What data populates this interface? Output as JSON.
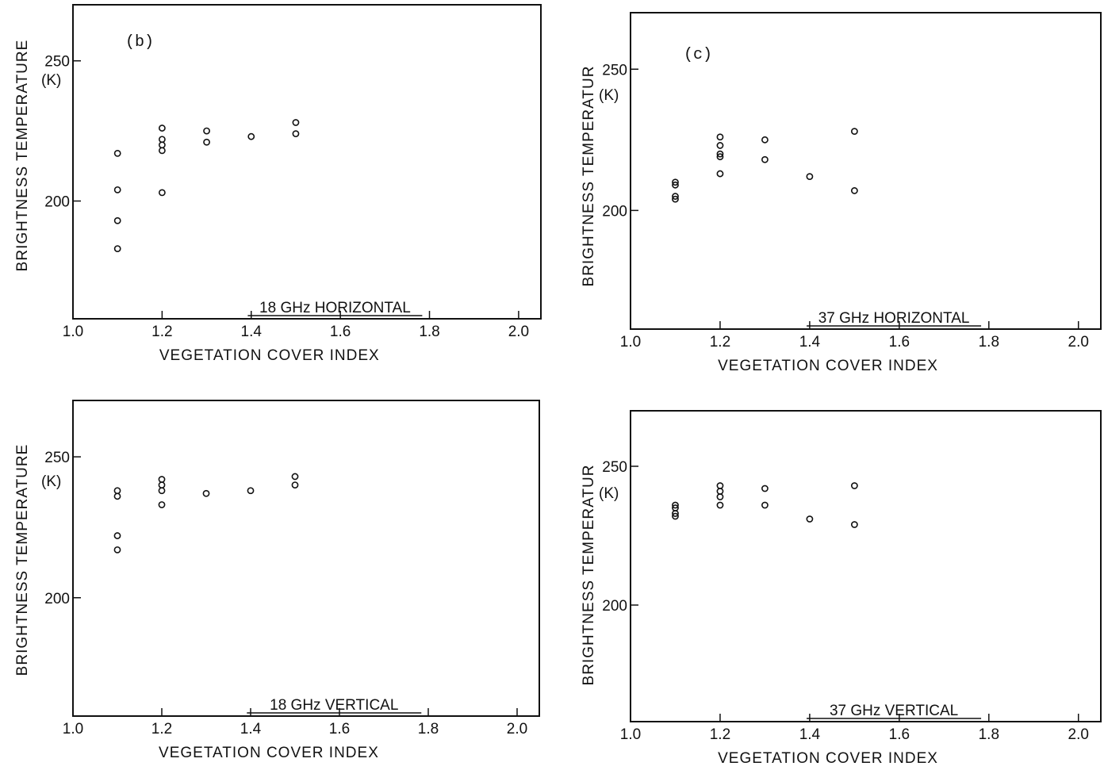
{
  "chart_data": [
    {
      "type": "scatter",
      "panel": "(b)",
      "annotation": "18 GHz HORIZONTAL",
      "xlabel": "VEGETATION COVER INDEX",
      "ylabel": "BRIGHTNESS TEMPERATURE",
      "yunit": "(K)",
      "xlim": [
        1.0,
        2.05
      ],
      "ylim": [
        158,
        270
      ],
      "xticks": [
        "1.0",
        "1.2",
        "1.4",
        "1.6",
        "1.8",
        "2.0"
      ],
      "xtick_values": [
        1.0,
        1.2,
        1.4,
        1.6,
        1.8,
        2.0
      ],
      "yticks": [
        "200",
        "250"
      ],
      "ytick_values": [
        200,
        250
      ],
      "points": [
        {
          "x": 1.1,
          "y": 217
        },
        {
          "x": 1.1,
          "y": 204
        },
        {
          "x": 1.1,
          "y": 193
        },
        {
          "x": 1.1,
          "y": 183
        },
        {
          "x": 1.2,
          "y": 226
        },
        {
          "x": 1.2,
          "y": 222
        },
        {
          "x": 1.2,
          "y": 220
        },
        {
          "x": 1.2,
          "y": 218
        },
        {
          "x": 1.2,
          "y": 203
        },
        {
          "x": 1.3,
          "y": 225
        },
        {
          "x": 1.3,
          "y": 221
        },
        {
          "x": 1.4,
          "y": 223
        },
        {
          "x": 1.5,
          "y": 228
        },
        {
          "x": 1.5,
          "y": 224
        }
      ]
    },
    {
      "type": "scatter",
      "panel": "(c)",
      "annotation": "37 GHz HORIZONTAL",
      "xlabel": "VEGETATION COVER INDEX",
      "ylabel": "BRIGHTNESS TEMPERATUR",
      "yunit": "(K)",
      "xlim": [
        1.0,
        2.05
      ],
      "ylim": [
        158,
        270
      ],
      "xticks": [
        "1.0",
        "1.2",
        "1.4",
        "1.6",
        "1.8",
        "2.0"
      ],
      "xtick_values": [
        1.0,
        1.2,
        1.4,
        1.6,
        1.8,
        2.0
      ],
      "yticks": [
        "200",
        "250"
      ],
      "ytick_values": [
        200,
        250
      ],
      "points": [
        {
          "x": 1.1,
          "y": 210
        },
        {
          "x": 1.1,
          "y": 209
        },
        {
          "x": 1.1,
          "y": 205
        },
        {
          "x": 1.1,
          "y": 204
        },
        {
          "x": 1.2,
          "y": 226
        },
        {
          "x": 1.2,
          "y": 223
        },
        {
          "x": 1.2,
          "y": 220
        },
        {
          "x": 1.2,
          "y": 219
        },
        {
          "x": 1.2,
          "y": 213
        },
        {
          "x": 1.3,
          "y": 225
        },
        {
          "x": 1.3,
          "y": 218
        },
        {
          "x": 1.4,
          "y": 212
        },
        {
          "x": 1.5,
          "y": 228
        },
        {
          "x": 1.5,
          "y": 207
        }
      ]
    },
    {
      "type": "scatter",
      "annotation": "18 GHz VERTICAL",
      "xlabel": "VEGETATION COVER INDEX",
      "ylabel": "BRIGHTNESS TEMPERATURE",
      "yunit": "(K)",
      "xlim": [
        1.0,
        2.05
      ],
      "ylim": [
        158,
        270
      ],
      "xticks": [
        "1.0",
        "1.2",
        "1.4",
        "1.6",
        "1.8",
        "2.0"
      ],
      "xtick_values": [
        1.0,
        1.2,
        1.4,
        1.6,
        1.8,
        2.0
      ],
      "yticks": [
        "200",
        "250"
      ],
      "ytick_values": [
        200,
        250
      ],
      "points": [
        {
          "x": 1.1,
          "y": 238
        },
        {
          "x": 1.1,
          "y": 236
        },
        {
          "x": 1.1,
          "y": 222
        },
        {
          "x": 1.1,
          "y": 217
        },
        {
          "x": 1.2,
          "y": 242
        },
        {
          "x": 1.2,
          "y": 240
        },
        {
          "x": 1.2,
          "y": 238
        },
        {
          "x": 1.2,
          "y": 233
        },
        {
          "x": 1.3,
          "y": 237
        },
        {
          "x": 1.4,
          "y": 238
        },
        {
          "x": 1.5,
          "y": 243
        },
        {
          "x": 1.5,
          "y": 240
        }
      ]
    },
    {
      "type": "scatter",
      "annotation": "37 GHz VERTICAL",
      "xlabel": "VEGETATION COVER INDEX",
      "ylabel": "BRIGHTNESS TEMPERATUR",
      "yunit": "(K)",
      "xlim": [
        1.0,
        2.05
      ],
      "ylim": [
        158,
        270
      ],
      "xticks": [
        "1.0",
        "1.2",
        "1.4",
        "1.6",
        "1.8",
        "2.0"
      ],
      "xtick_values": [
        1.0,
        1.2,
        1.4,
        1.6,
        1.8,
        2.0
      ],
      "yticks": [
        "200",
        "250"
      ],
      "ytick_values": [
        200,
        250
      ],
      "points": [
        {
          "x": 1.1,
          "y": 236
        },
        {
          "x": 1.1,
          "y": 235
        },
        {
          "x": 1.1,
          "y": 233
        },
        {
          "x": 1.1,
          "y": 232
        },
        {
          "x": 1.2,
          "y": 243
        },
        {
          "x": 1.2,
          "y": 241
        },
        {
          "x": 1.2,
          "y": 239
        },
        {
          "x": 1.2,
          "y": 236
        },
        {
          "x": 1.3,
          "y": 242
        },
        {
          "x": 1.3,
          "y": 236
        },
        {
          "x": 1.4,
          "y": 231
        },
        {
          "x": 1.5,
          "y": 243
        },
        {
          "x": 1.5,
          "y": 229
        }
      ]
    }
  ]
}
